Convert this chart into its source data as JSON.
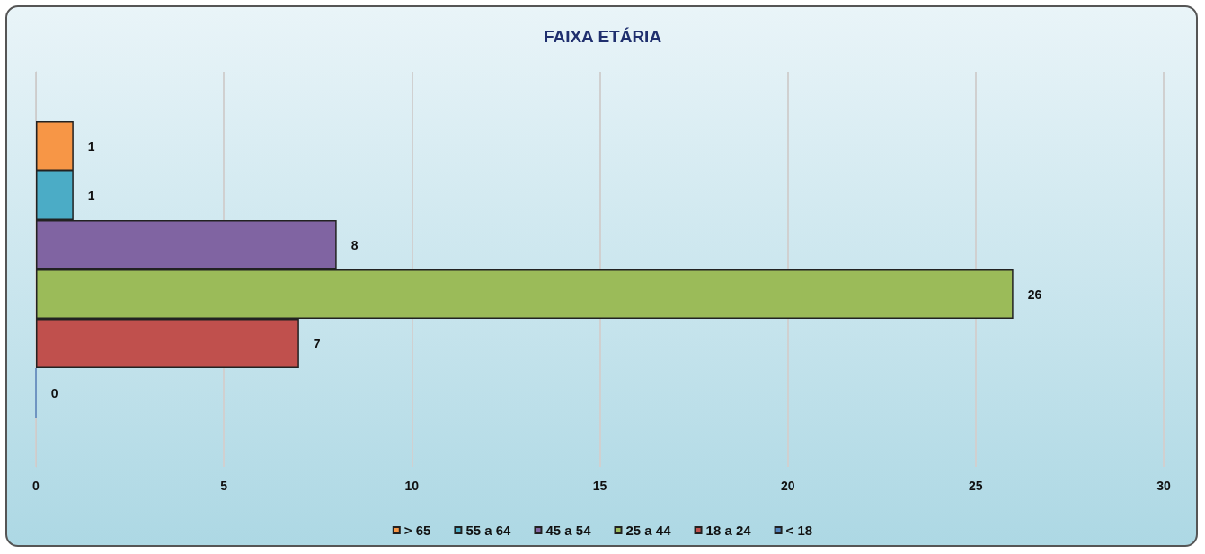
{
  "chart_data": {
    "type": "bar",
    "title": "FAIXA ETÁRIA",
    "orientation": "horizontal",
    "categories": [
      null
    ],
    "series": [
      {
        "name": "> 65",
        "color": "#f79646",
        "values": [
          1
        ]
      },
      {
        "name": "55 a 64",
        "color": "#4bacc6",
        "values": [
          1
        ]
      },
      {
        "name": "45 a 54",
        "color": "#8064a2",
        "values": [
          8
        ]
      },
      {
        "name": "25 a 44",
        "color": "#9bbb59",
        "values": [
          26
        ]
      },
      {
        "name": "18 a 24",
        "color": "#c0504d",
        "values": [
          7
        ]
      },
      {
        "name": "< 18",
        "color": "#4f81bd",
        "values": [
          0
        ]
      }
    ],
    "xlim": [
      0,
      30
    ],
    "xticks": [
      0,
      5,
      10,
      15,
      20,
      25,
      30
    ],
    "grid": "x",
    "legend": "bottom",
    "data_labels": true
  }
}
